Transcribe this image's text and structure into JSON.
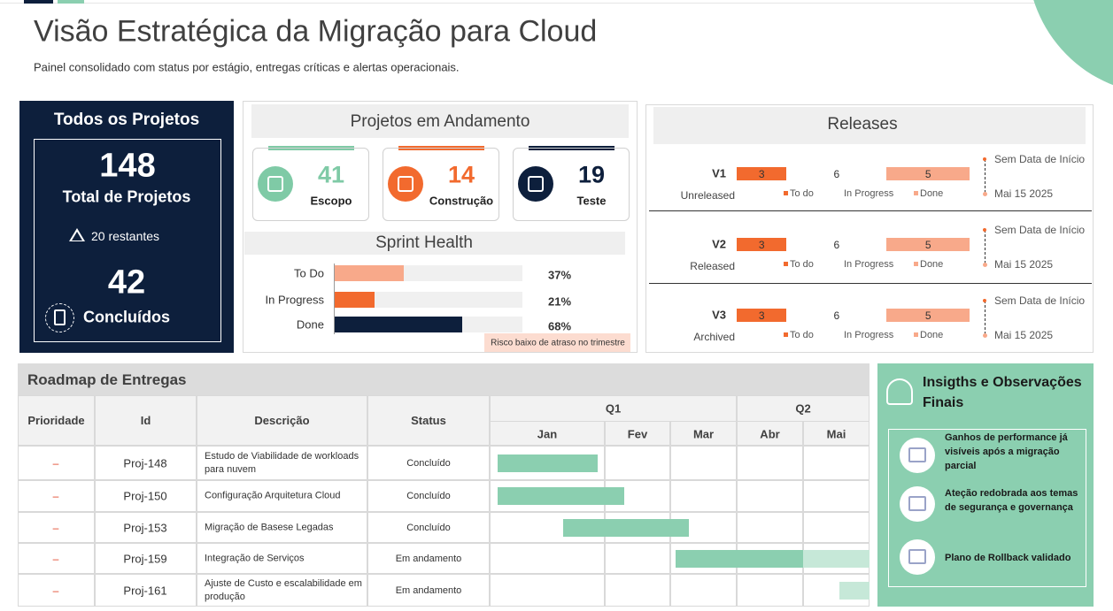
{
  "header": {
    "title": "Visão Estratégica da Migração para Cloud",
    "subtitle": "Painel consolidado com status por estágio, entregas críticas e alertas operacionais."
  },
  "all_projects": {
    "title": "Todos os Projetos",
    "total": 148,
    "total_label": "Total de Projetos",
    "remaining": "20 restantes",
    "done": 42,
    "done_label": "Concluídos"
  },
  "in_progress": {
    "title": "Projetos em Andamento",
    "cards": [
      {
        "value": 41,
        "label": "Escopo",
        "color": "#7fcaa6"
      },
      {
        "value": 14,
        "label": "Construção",
        "color": "#f26a2e"
      },
      {
        "value": 19,
        "label": "Teste",
        "color": "#0d1f3c"
      }
    ]
  },
  "sprint_health": {
    "type": "bar",
    "title": "Sprint Health",
    "categories": [
      "To Do",
      "In Progress",
      "Done"
    ],
    "values": [
      37,
      21,
      68
    ],
    "value_labels": [
      "37%",
      "21%",
      "68%"
    ],
    "colors": [
      "#f8a98a",
      "#f26a2e",
      "#0d1f3c"
    ],
    "xlim": [
      0,
      100
    ],
    "note": "Risco baixo de atraso no trimestre"
  },
  "releases": {
    "title": "Releases",
    "legend": [
      "To do",
      "In Progress",
      "Done"
    ],
    "colors": [
      "#f26a2e",
      "#ffffff",
      "#f8a98a"
    ],
    "rows": [
      {
        "version": "V1",
        "status": "Unreleased",
        "values": [
          3,
          6,
          5
        ],
        "start": "Sem Data de Início",
        "end": "Mai 15 2025"
      },
      {
        "version": "V2",
        "status": "Released",
        "values": [
          3,
          6,
          5
        ],
        "start": "Sem Data de Início",
        "end": "Mai 15 2025"
      },
      {
        "version": "V3",
        "status": "Archived",
        "values": [
          3,
          6,
          5
        ],
        "start": "Sem Data de Início",
        "end": "Mai 15 2025"
      }
    ]
  },
  "roadmap": {
    "title": "Roadmap de Entregas",
    "columns": [
      "Prioridade",
      "Id",
      "Descrição",
      "Status"
    ],
    "quarters": [
      "Q1",
      "Q2"
    ],
    "months": [
      "Jan",
      "Fev",
      "Mar",
      "Abr",
      "Mai"
    ],
    "rows": [
      {
        "priority": "–",
        "id": "Proj-148",
        "description": "Estudo de Viabilidade de workloads para nuvem",
        "status": "Concluído",
        "bars": [
          {
            "start": 0.07,
            "end": 0.94,
            "color": "#8bcfb0"
          }
        ]
      },
      {
        "priority": "–",
        "id": "Proj-150",
        "description": "Configuração Arquitetura Cloud",
        "status": "Concluído",
        "bars": [
          {
            "start": 0.07,
            "end": 1.3,
            "color": "#8bcfb0"
          }
        ]
      },
      {
        "priority": "–",
        "id": "Proj-153",
        "description": "Migração de Basese Legadas",
        "status": "Concluído",
        "bars": [
          {
            "start": 0.64,
            "end": 2.28,
            "color": "#8bcfb0"
          }
        ]
      },
      {
        "priority": "–",
        "id": "Proj-159",
        "description": "Integração de Serviços",
        "status": "Em andamento",
        "bars": [
          {
            "start": 2.08,
            "end": 4.0,
            "color": "#8bcfb0"
          },
          {
            "start": 4.0,
            "end": 5.0,
            "color": "#c6e8d8"
          }
        ]
      },
      {
        "priority": "–",
        "id": "Proj-161",
        "description": "Ajuste de Custo e escalabilidade em produção",
        "status": "Em andamento",
        "bars": [
          {
            "start": 4.55,
            "end": 5.0,
            "color": "#c6e8d8"
          }
        ]
      }
    ]
  },
  "insights": {
    "title": "Insigths e Observações Finais",
    "items": [
      "Ganhos de performance já visíveis após a migração parcial",
      "Ateção redobrada aos temas de segurança e governança",
      "Plano de Rollback validado"
    ]
  }
}
